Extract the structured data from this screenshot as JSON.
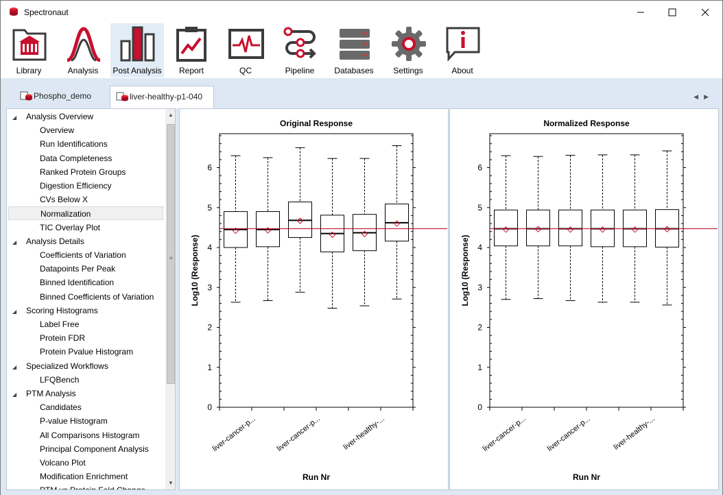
{
  "app": {
    "title": "Spectronaut"
  },
  "window_controls": {
    "minimize": "—",
    "maximize": "☐",
    "close": "✕"
  },
  "ribbon": [
    {
      "label": "Library",
      "icon": "library-icon"
    },
    {
      "label": "Analysis",
      "icon": "analysis-icon"
    },
    {
      "label": "Post Analysis",
      "icon": "post-analysis-icon",
      "active": true
    },
    {
      "label": "Report",
      "icon": "report-icon"
    },
    {
      "label": "QC",
      "icon": "qc-icon"
    },
    {
      "label": "Pipeline",
      "icon": "pipeline-icon"
    },
    {
      "label": "Databases",
      "icon": "databases-icon"
    },
    {
      "label": "Settings",
      "icon": "settings-icon"
    },
    {
      "label": "About",
      "icon": "about-icon"
    }
  ],
  "doc_tabs": [
    {
      "label": "Phospho_demo",
      "active": false
    },
    {
      "label": "liver-healthy-p1-040",
      "active": true
    }
  ],
  "nav_tree": [
    {
      "label": "Analysis Overview",
      "type": "group"
    },
    {
      "label": "Overview",
      "type": "leaf"
    },
    {
      "label": "Run Identifications",
      "type": "leaf"
    },
    {
      "label": "Data Completeness",
      "type": "leaf"
    },
    {
      "label": "Ranked Protein Groups",
      "type": "leaf"
    },
    {
      "label": "Digestion Efficiency",
      "type": "leaf"
    },
    {
      "label": "CVs Below X",
      "type": "leaf"
    },
    {
      "label": "Normalization",
      "type": "leaf",
      "selected": true
    },
    {
      "label": "TIC Overlay Plot",
      "type": "leaf"
    },
    {
      "label": "Analysis Details",
      "type": "group"
    },
    {
      "label": "Coefficients of Variation",
      "type": "leaf"
    },
    {
      "label": "Datapoints Per Peak",
      "type": "leaf"
    },
    {
      "label": "Binned Identification",
      "type": "leaf"
    },
    {
      "label": "Binned Coefficients of Variation",
      "type": "leaf"
    },
    {
      "label": "Scoring Histograms",
      "type": "group"
    },
    {
      "label": "Label Free",
      "type": "leaf"
    },
    {
      "label": "Protein FDR",
      "type": "leaf"
    },
    {
      "label": "Protein Pvalue Histogram",
      "type": "leaf"
    },
    {
      "label": "Specialized Workflows",
      "type": "group"
    },
    {
      "label": "LFQBench",
      "type": "leaf"
    },
    {
      "label": "PTM Analysis",
      "type": "group"
    },
    {
      "label": "Candidates",
      "type": "leaf"
    },
    {
      "label": "P-value Histogram",
      "type": "leaf"
    },
    {
      "label": "All Comparisons Histogram",
      "type": "leaf"
    },
    {
      "label": "Principal Component Analysis",
      "type": "leaf"
    },
    {
      "label": "Volcano Plot",
      "type": "leaf"
    },
    {
      "label": "Modification Enrichment",
      "type": "leaf"
    },
    {
      "label": "PTM vs Protein Fold Change",
      "type": "leaf"
    }
  ],
  "colors": {
    "accent": "#c8102e",
    "panel_bg": "#dde8f4",
    "median_line": "#b00020"
  },
  "chart_data": [
    {
      "type": "box",
      "title": "Original Response",
      "xlabel": "Run Nr",
      "ylabel": "Log10 (Response)",
      "ylim": [
        0,
        6.85
      ],
      "yticks": [
        0,
        1,
        2,
        3,
        4,
        5,
        6
      ],
      "xtick_labels": [
        "liver-cancer-p...",
        "liver-cancer-p...",
        "liver-healthy-..."
      ],
      "reference_line": 4.47,
      "boxes": [
        {
          "whisker_low": 2.63,
          "q1": 4.0,
          "median": 4.45,
          "q3": 4.9,
          "whisker_high": 6.3,
          "mean": 4.42
        },
        {
          "whisker_low": 2.67,
          "q1": 4.02,
          "median": 4.45,
          "q3": 4.9,
          "whisker_high": 6.25,
          "mean": 4.43
        },
        {
          "whisker_low": 2.88,
          "q1": 4.25,
          "median": 4.68,
          "q3": 5.14,
          "whisker_high": 6.5,
          "mean": 4.67
        },
        {
          "whisker_low": 2.48,
          "q1": 3.89,
          "median": 4.35,
          "q3": 4.81,
          "whisker_high": 6.23,
          "mean": 4.32
        },
        {
          "whisker_low": 2.54,
          "q1": 3.92,
          "median": 4.37,
          "q3": 4.83,
          "whisker_high": 6.23,
          "mean": 4.34
        },
        {
          "whisker_low": 2.71,
          "q1": 4.16,
          "median": 4.62,
          "q3": 5.09,
          "whisker_high": 6.55,
          "mean": 4.6
        }
      ]
    },
    {
      "type": "box",
      "title": "Normalized Response",
      "xlabel": "Run Nr",
      "ylabel": "Log10 (Response)",
      "ylim": [
        0,
        6.85
      ],
      "yticks": [
        0,
        1,
        2,
        3,
        4,
        5,
        6
      ],
      "xtick_labels": [
        "liver-cancer-p...",
        "liver-cancer-p...",
        "liver-healthy-..."
      ],
      "reference_line": 4.47,
      "boxes": [
        {
          "whisker_low": 2.7,
          "q1": 4.04,
          "median": 4.47,
          "q3": 4.94,
          "whisker_high": 6.3,
          "mean": 4.45
        },
        {
          "whisker_low": 2.72,
          "q1": 4.04,
          "median": 4.47,
          "q3": 4.94,
          "whisker_high": 6.28,
          "mean": 4.46
        },
        {
          "whisker_low": 2.67,
          "q1": 4.04,
          "median": 4.47,
          "q3": 4.94,
          "whisker_high": 6.31,
          "mean": 4.45
        },
        {
          "whisker_low": 2.63,
          "q1": 4.02,
          "median": 4.47,
          "q3": 4.94,
          "whisker_high": 6.32,
          "mean": 4.45
        },
        {
          "whisker_low": 2.63,
          "q1": 4.02,
          "median": 4.47,
          "q3": 4.94,
          "whisker_high": 6.32,
          "mean": 4.45
        },
        {
          "whisker_low": 2.56,
          "q1": 4.01,
          "median": 4.47,
          "q3": 4.95,
          "whisker_high": 6.42,
          "mean": 4.46
        }
      ]
    }
  ]
}
